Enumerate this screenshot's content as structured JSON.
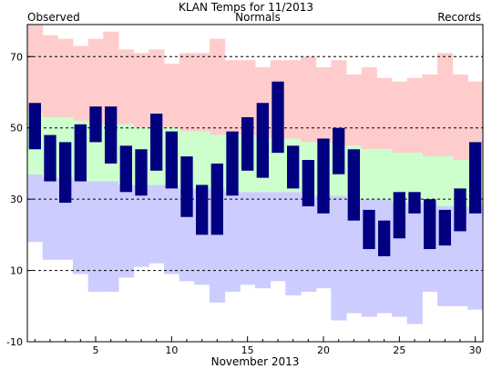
{
  "chart_data": {
    "type": "bar",
    "title": "KLAN Temps for 11/2013",
    "legend": [
      {
        "label": "Observed",
        "color": "#000080",
        "placement": "top-left"
      },
      {
        "label": "Normals",
        "color": "#008000",
        "placement": "top-center"
      },
      {
        "label": "Records",
        "color": "#b48ee6",
        "placement": "top-right"
      }
    ],
    "xlabel": "November 2013",
    "ylabel": "",
    "xlim": [
      0.5,
      30.5
    ],
    "ylim": [
      -10,
      79
    ],
    "x_ticks": [
      5,
      10,
      15,
      20,
      25,
      30
    ],
    "y_ticks": [
      -10,
      10,
      30,
      50,
      70
    ],
    "gridlines_y": [
      10,
      30,
      50,
      70
    ],
    "days": [
      1,
      2,
      3,
      4,
      5,
      6,
      7,
      8,
      9,
      10,
      11,
      12,
      13,
      14,
      15,
      16,
      17,
      18,
      19,
      20,
      21,
      22,
      23,
      24,
      25,
      26,
      27,
      28,
      29,
      30
    ],
    "series": [
      {
        "name": "Observed",
        "color": "#000080",
        "high": [
          57,
          48,
          46,
          51,
          56,
          56,
          45,
          44,
          54,
          49,
          42,
          34,
          40,
          49,
          53,
          57,
          63,
          45,
          41,
          47,
          50,
          44,
          27,
          24,
          32,
          32,
          30,
          27,
          33,
          46
        ],
        "low": [
          44,
          35,
          29,
          35,
          46,
          40,
          32,
          31,
          38,
          33,
          25,
          20,
          20,
          31,
          38,
          36,
          43,
          33,
          28,
          26,
          37,
          24,
          16,
          14,
          19,
          26,
          16,
          17,
          21,
          26
        ]
      },
      {
        "name": "Normals",
        "color": "#ccffcc",
        "high": [
          54,
          53,
          53,
          52,
          51,
          51,
          51,
          50,
          50,
          50,
          49,
          49,
          48,
          48,
          48,
          47,
          47,
          47,
          46,
          46,
          45,
          45,
          44,
          44,
          43,
          43,
          42,
          42,
          41,
          41
        ],
        "low": [
          37,
          36,
          36,
          35,
          35,
          35,
          34,
          34,
          34,
          34,
          33,
          33,
          33,
          32,
          32,
          32,
          32,
          32,
          31,
          31,
          31,
          30,
          30,
          30,
          29,
          29,
          29,
          28,
          28,
          28
        ]
      },
      {
        "name": "Records",
        "high_color": "#ffcccc",
        "low_color": "#ccccff",
        "high": [
          79,
          76,
          75,
          73,
          75,
          77,
          72,
          71,
          72,
          68,
          71,
          71,
          75,
          69,
          69,
          67,
          69,
          69,
          70,
          67,
          69,
          65,
          67,
          64,
          63,
          64,
          65,
          71,
          65,
          63
        ],
        "low": [
          18,
          13,
          13,
          9,
          4,
          4,
          8,
          11,
          12,
          9,
          7,
          6,
          1,
          4,
          6,
          5,
          7,
          3,
          4,
          5,
          -4,
          -2,
          -3,
          -2,
          -3,
          -5,
          4,
          0,
          0,
          -1
        ]
      }
    ]
  }
}
